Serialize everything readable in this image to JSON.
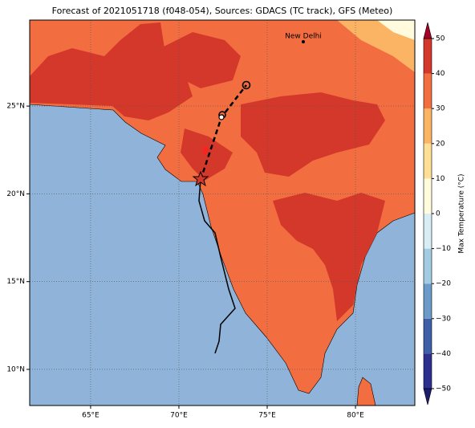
{
  "map": {
    "title": "Forecast of 2021051718 (f048-054), Sources: GDACS (TC track), GFS (Meteo)",
    "place_label": "New Delhi",
    "lonlim": [
      61.55,
      83.36
    ],
    "latlim": [
      7.94,
      29.9
    ],
    "lon_ticks": [
      {
        "value": 65,
        "label": "65°E"
      },
      {
        "value": 70,
        "label": "70°E"
      },
      {
        "value": 75,
        "label": "75°E"
      },
      {
        "value": 80,
        "label": "80°E"
      }
    ],
    "lat_ticks": [
      {
        "value": 10,
        "label": "10°N"
      },
      {
        "value": 15,
        "label": "15°N"
      },
      {
        "value": 20,
        "label": "20°N"
      },
      {
        "value": 25,
        "label": "25°N"
      }
    ],
    "colorbar": {
      "label": "Max Temperature (°C)",
      "ticks": [
        {
          "value": -50,
          "label": "−50"
        },
        {
          "value": -40,
          "label": "−40"
        },
        {
          "value": -30,
          "label": "−30"
        },
        {
          "value": -20,
          "label": "−20"
        },
        {
          "value": -10,
          "label": "−10"
        },
        0,
        10,
        20,
        30,
        40,
        50
      ],
      "colors": [
        "#2c2f8e",
        "#3f5fa8",
        "#6b9bc9",
        "#a3cce2",
        "#d8eef4",
        "#fffbdc",
        "#fedf95",
        "#fbb364",
        "#f26d40",
        "#d4382b"
      ],
      "extend_colors": [
        "#1c1d6e",
        "#a50026"
      ]
    }
  }
}
